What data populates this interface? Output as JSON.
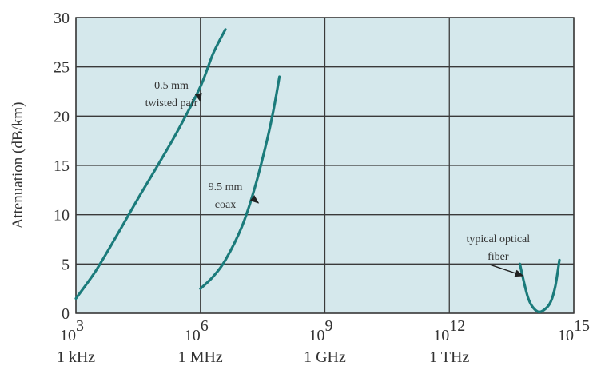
{
  "chart_data": {
    "type": "line",
    "title": "",
    "xlabel": "",
    "ylabel": "Attenuation (dB/km)",
    "xscale": "log",
    "xlim": [
      1000,
      1000000000000000
    ],
    "ylim": [
      0,
      30
    ],
    "grid": true,
    "colors": {
      "line": "#1b7b7b",
      "plot_bg": "#d5e8ec",
      "grid": "#3a3a3a",
      "text": "#333333"
    },
    "x_ticks": [
      {
        "base": "10",
        "exp": "3",
        "label": "1 kHz",
        "value": 1000
      },
      {
        "base": "10",
        "exp": "6",
        "label": "1 MHz",
        "value": 1000000
      },
      {
        "base": "10",
        "exp": "9",
        "label": "1 GHz",
        "value": 1000000000
      },
      {
        "base": "10",
        "exp": "12",
        "label": "1 THz",
        "value": 1000000000000
      },
      {
        "base": "10",
        "exp": "15",
        "label": "",
        "value": 1000000000000000
      }
    ],
    "y_ticks": [
      "0",
      "5",
      "10",
      "15",
      "20",
      "25",
      "30"
    ],
    "y_tick_values": [
      0,
      5,
      10,
      15,
      20,
      25,
      30
    ],
    "series": [
      {
        "x": [
          1000,
          3000,
          10000,
          30000,
          100000,
          300000,
          1000000,
          2000000,
          4000000
        ],
        "y": [
          1.5,
          4.3,
          8,
          11.5,
          15.2,
          18.7,
          23,
          26.3,
          28.8
        ]
      },
      {
        "x": [
          1000000,
          2000000,
          4000000,
          10000000,
          20000000,
          40000000,
          60000000,
          80000000
        ],
        "y": [
          2.5,
          3.7,
          5.4,
          8.8,
          12.6,
          17.5,
          21,
          24
        ]
      },
      {
        "x": [
          50000000000000,
          80000000000000,
          130000000000000,
          200000000000000,
          280000000000000,
          360000000000000,
          450000000000000
        ],
        "y": [
          5,
          1.5,
          0.2,
          0.4,
          1.2,
          2.8,
          5.4
        ]
      }
    ],
    "annotations": [
      {
        "lines": [
          "0.5 mm",
          "twisted pair"
        ],
        "x": 200000,
        "y": 22.8,
        "arrow_to": [
          1000000,
          21.5
        ]
      },
      {
        "lines": [
          "9.5 mm",
          "coax"
        ],
        "x": 4000000,
        "y": 12.5,
        "arrow_to": [
          25000000,
          11.2
        ]
      },
      {
        "lines": [
          "typical optical",
          "fiber"
        ],
        "x": 15000000000000,
        "y": 7.2,
        "arrow_to": [
          60000000000000,
          3.8
        ]
      }
    ]
  }
}
